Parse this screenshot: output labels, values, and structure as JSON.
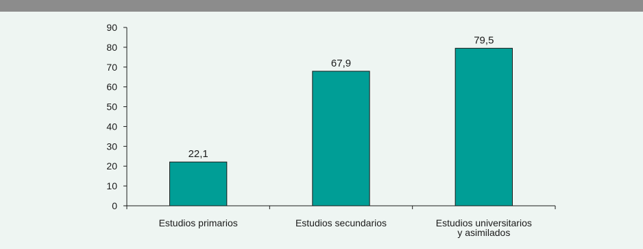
{
  "chart_data": {
    "type": "bar",
    "categories": [
      [
        "Estudios primarios"
      ],
      [
        "Estudios secundarios"
      ],
      [
        "Estudios universitarios",
        "y asimilados"
      ]
    ],
    "values": [
      22.1,
      67.9,
      79.5
    ],
    "value_labels": [
      "22,1",
      "67,9",
      "79,5"
    ],
    "yticks": [
      "0",
      "10",
      "20",
      "30",
      "40",
      "50",
      "60",
      "70",
      "80",
      "90"
    ],
    "ylim": [
      0,
      90
    ],
    "title": "",
    "xlabel": "",
    "ylabel": "",
    "grid": false,
    "legend": "none",
    "bar_color": "#009e96",
    "bar_edge_color": "#1a1a1a",
    "background_color": "#eef5f2",
    "header_bar_color": "#8c8c8c"
  }
}
